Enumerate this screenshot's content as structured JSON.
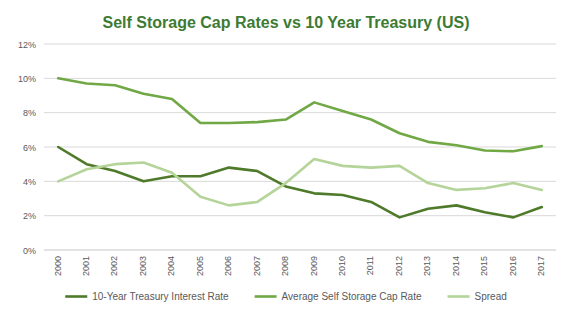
{
  "chart_data": {
    "type": "line",
    "title": "Self Storage Cap Rates vs 10 Year Treasury (US)",
    "categories": [
      "2000",
      "2001",
      "2002",
      "2003",
      "2004",
      "2005",
      "2006",
      "2007",
      "2008",
      "2009",
      "2010",
      "2011",
      "2012",
      "2013",
      "2014",
      "2015",
      "2016",
      "2017"
    ],
    "series": [
      {
        "name": "10-Year Treasury Interest Rate",
        "color": "#4e7a2a",
        "values": [
          6.0,
          5.0,
          4.6,
          4.0,
          4.3,
          4.3,
          4.8,
          4.6,
          3.7,
          3.3,
          3.2,
          2.8,
          1.9,
          2.4,
          2.6,
          2.2,
          1.9,
          2.5
        ]
      },
      {
        "name": "Average Self Storage Cap Rate",
        "color": "#70a845",
        "values": [
          10.0,
          9.7,
          9.6,
          9.1,
          8.8,
          7.4,
          7.4,
          7.45,
          7.6,
          8.6,
          8.1,
          7.6,
          6.8,
          6.3,
          6.1,
          5.8,
          5.75,
          6.05
        ]
      },
      {
        "name": "Spread",
        "color": "#b4d49a",
        "values": [
          4.0,
          4.7,
          5.0,
          5.1,
          4.5,
          3.1,
          2.6,
          2.8,
          3.9,
          5.3,
          4.9,
          4.8,
          4.9,
          3.9,
          3.5,
          3.6,
          3.9,
          3.5
        ]
      }
    ],
    "ylim": [
      0,
      12
    ],
    "yticks": [
      {
        "value": 0,
        "label": "0%"
      },
      {
        "value": 2,
        "label": "2%"
      },
      {
        "value": 4,
        "label": "4%"
      },
      {
        "value": 6,
        "label": "6%"
      },
      {
        "value": 8,
        "label": "8%"
      },
      {
        "value": 10,
        "label": "10%"
      },
      {
        "value": 12,
        "label": "12%"
      }
    ],
    "grid": true,
    "legend": "bottom"
  }
}
